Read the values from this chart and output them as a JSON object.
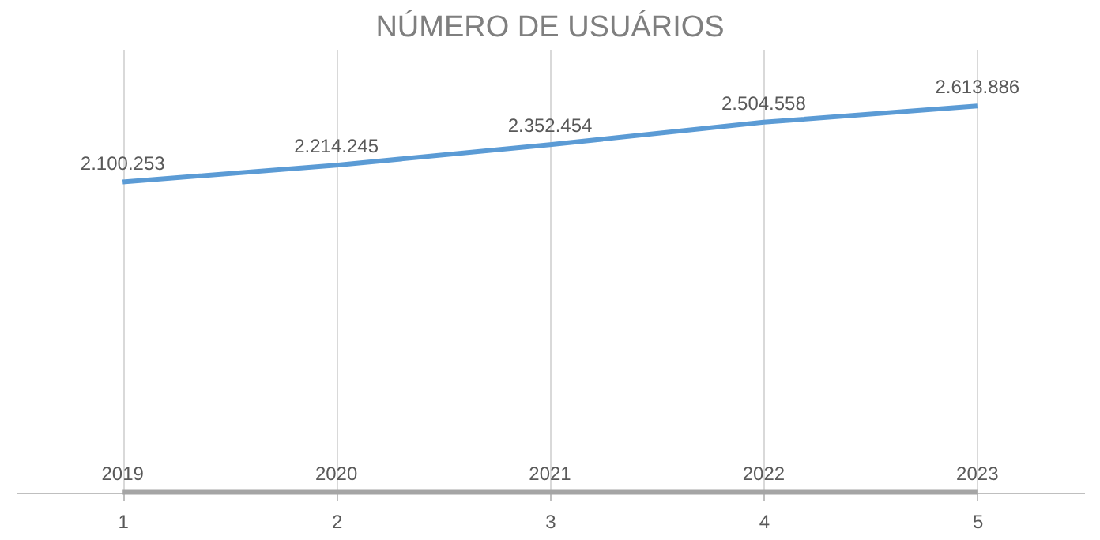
{
  "chart_data": {
    "type": "line",
    "title": "NÚMERO DE USUÁRIOS",
    "categories": [
      "1",
      "2",
      "3",
      "4",
      "5"
    ],
    "series": [
      {
        "color": "#5b9bd5",
        "values": [
          2100253,
          2214245,
          2352454,
          2504558,
          2613886
        ],
        "value_labels": [
          "2.100.253",
          "2.214.245",
          "2.352.454",
          "2.504.558",
          "2.613.886"
        ]
      },
      {
        "color": "#a5a5a5",
        "values": [
          2019,
          2020,
          2021,
          2022,
          2023
        ],
        "value_labels": [
          "2019",
          "2020",
          "2021",
          "2022",
          "2023"
        ]
      }
    ],
    "data_labels": true,
    "ylim": [
      0,
      3000000
    ],
    "tick_labels": "x",
    "grid": "x",
    "marker": "none",
    "line_style": "solid"
  }
}
